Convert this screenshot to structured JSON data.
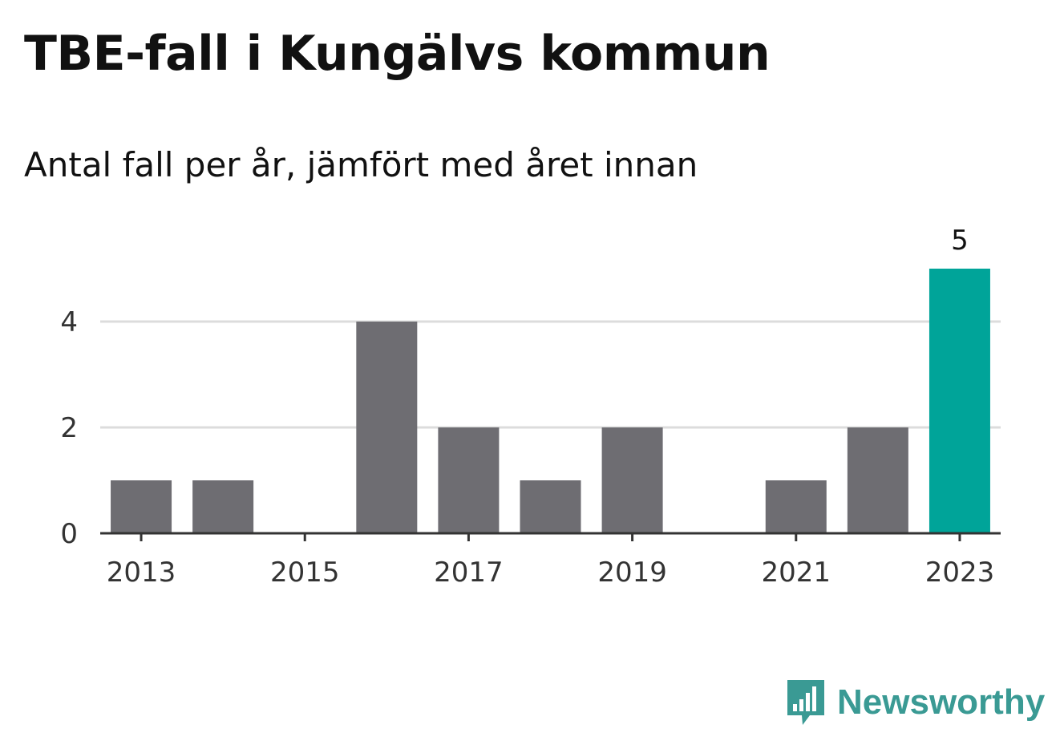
{
  "title": "TBE-fall i Kungälvs kommun",
  "subtitle": "Antal fall per år, jämfört med året innan",
  "brand": {
    "name": "Newsworthy",
    "icon": "newsworthy-logo-icon"
  },
  "colors": {
    "bar": "#6e6d72",
    "highlight": "#00a499",
    "grid": "#dcdcdc",
    "axis": "#333333",
    "brand": "#3a9a94"
  },
  "chart_data": {
    "type": "bar",
    "categories": [
      "2013",
      "2014",
      "2015",
      "2016",
      "2017",
      "2018",
      "2019",
      "2020",
      "2021",
      "2022",
      "2023"
    ],
    "values": [
      1,
      1,
      0,
      4,
      2,
      1,
      2,
      0,
      1,
      2,
      5
    ],
    "x_tick_labels": [
      "2013",
      "2015",
      "2017",
      "2019",
      "2021",
      "2023"
    ],
    "y_ticks": [
      0,
      2,
      4
    ],
    "ylim": [
      0,
      5
    ],
    "highlight_category": "2023",
    "data_labels": [
      {
        "category": "2023",
        "text": "5"
      }
    ],
    "grid": true,
    "xlabel": "",
    "ylabel": ""
  }
}
